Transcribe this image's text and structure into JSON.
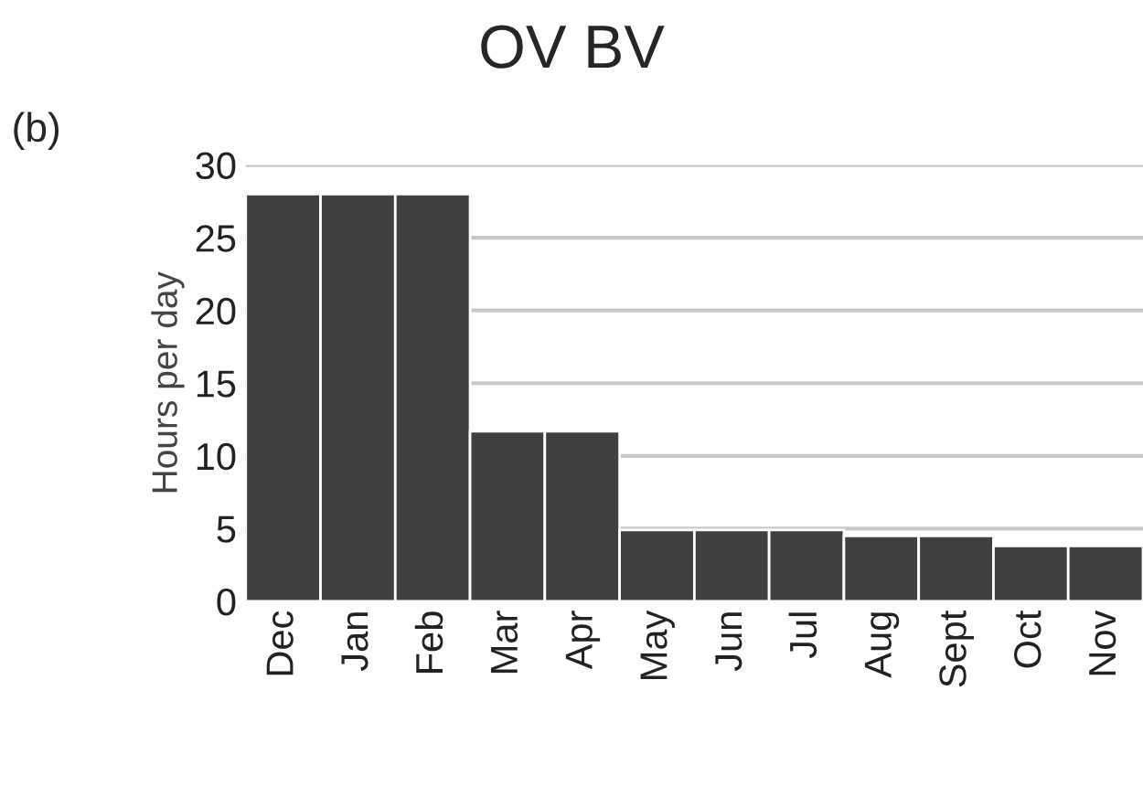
{
  "chart_data": {
    "type": "bar",
    "title": "OV BV",
    "ylabel": "Hours per day",
    "annotations": [
      "(b)"
    ],
    "categories": [
      "Dec",
      "Jan",
      "Feb",
      "Mar",
      "Apr",
      "May",
      "Jun",
      "Jul",
      "Aug",
      "Sept",
      "Oct",
      "Nov"
    ],
    "values": [
      28,
      28,
      28,
      11.7,
      11.7,
      4.9,
      4.9,
      4.9,
      4.5,
      4.5,
      3.8,
      3.8
    ],
    "color": "#404040",
    "ylim": [
      0,
      30
    ],
    "yticks": [
      0,
      5,
      10,
      15,
      20,
      25,
      30
    ],
    "grid": "y",
    "legend": false
  }
}
